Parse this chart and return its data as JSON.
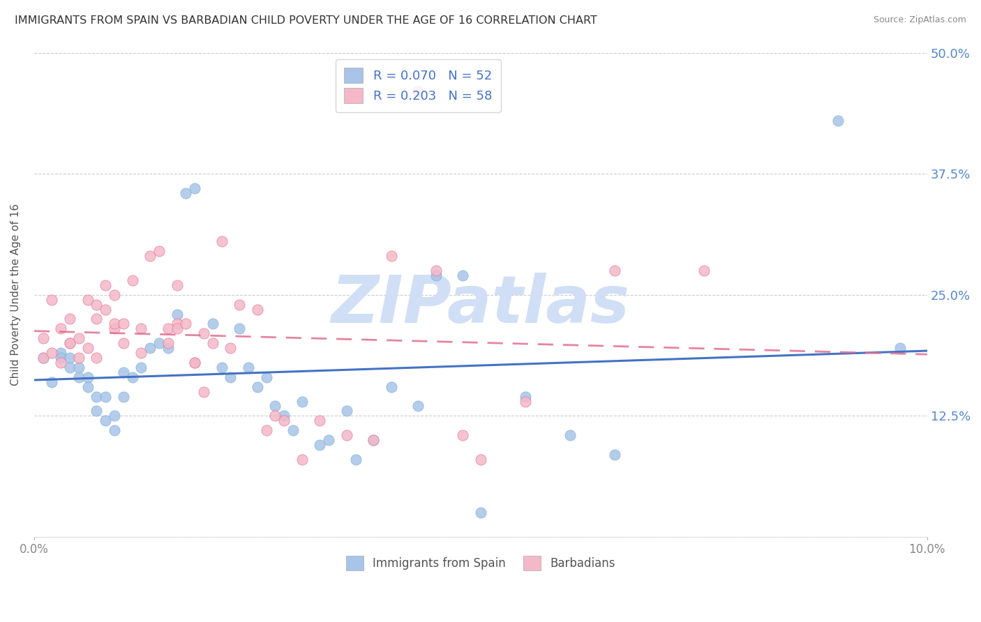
{
  "title": "IMMIGRANTS FROM SPAIN VS BARBADIAN CHILD POVERTY UNDER THE AGE OF 16 CORRELATION CHART",
  "source": "Source: ZipAtlas.com",
  "ylabel": "Child Poverty Under the Age of 16",
  "ytick_vals": [
    0.0,
    0.125,
    0.25,
    0.375,
    0.5
  ],
  "ytick_labels": [
    "",
    "12.5%",
    "25.0%",
    "37.5%",
    "50.0%"
  ],
  "xtick_vals": [
    0.0,
    0.1
  ],
  "xtick_labels": [
    "0.0%",
    "10.0%"
  ],
  "xlim": [
    0,
    0.1
  ],
  "ylim": [
    0,
    0.5
  ],
  "series1_color": "#a8c4e8",
  "series1_edge": "#7bafd4",
  "series2_color": "#f4b8c8",
  "series2_edge": "#e07090",
  "trendline1_color": "#4472c4",
  "trendline2_color": "#e07090",
  "watermark_text": "ZIPatlas",
  "watermark_color": "#d0dff5",
  "legend_patch1_color": "#a8c4e8",
  "legend_patch2_color": "#f4b8c8",
  "legend_text_color": "#4472c4",
  "legend_label1": "R = 0.070   N = 52",
  "legend_label2": "R = 0.203   N = 58",
  "bottom_label1": "Immigrants from Spain",
  "bottom_label2": "Barbadians",
  "ytick_color": "#5588cc",
  "title_color": "#333333",
  "source_color": "#888888",
  "ylabel_color": "#555555",
  "grid_color": "#cccccc",
  "series1_x": [
    0.001,
    0.002,
    0.003,
    0.003,
    0.004,
    0.004,
    0.005,
    0.005,
    0.006,
    0.006,
    0.007,
    0.007,
    0.008,
    0.008,
    0.009,
    0.009,
    0.01,
    0.01,
    0.011,
    0.012,
    0.013,
    0.014,
    0.015,
    0.016,
    0.017,
    0.018,
    0.02,
    0.021,
    0.022,
    0.023,
    0.024,
    0.025,
    0.026,
    0.027,
    0.028,
    0.029,
    0.03,
    0.032,
    0.033,
    0.035,
    0.036,
    0.038,
    0.04,
    0.043,
    0.045,
    0.048,
    0.05,
    0.055,
    0.06,
    0.065,
    0.09,
    0.097
  ],
  "series1_y": [
    0.185,
    0.16,
    0.19,
    0.185,
    0.185,
    0.175,
    0.175,
    0.165,
    0.165,
    0.155,
    0.145,
    0.13,
    0.145,
    0.12,
    0.11,
    0.125,
    0.145,
    0.17,
    0.165,
    0.175,
    0.195,
    0.2,
    0.195,
    0.23,
    0.355,
    0.36,
    0.22,
    0.175,
    0.165,
    0.215,
    0.175,
    0.155,
    0.165,
    0.135,
    0.125,
    0.11,
    0.14,
    0.095,
    0.1,
    0.13,
    0.08,
    0.1,
    0.155,
    0.135,
    0.27,
    0.27,
    0.025,
    0.145,
    0.105,
    0.085,
    0.43,
    0.195
  ],
  "series2_x": [
    0.001,
    0.001,
    0.002,
    0.002,
    0.003,
    0.003,
    0.004,
    0.004,
    0.004,
    0.005,
    0.005,
    0.006,
    0.006,
    0.007,
    0.007,
    0.007,
    0.008,
    0.008,
    0.009,
    0.009,
    0.009,
    0.01,
    0.01,
    0.011,
    0.012,
    0.012,
    0.013,
    0.014,
    0.015,
    0.015,
    0.016,
    0.016,
    0.016,
    0.017,
    0.018,
    0.018,
    0.019,
    0.019,
    0.02,
    0.021,
    0.022,
    0.023,
    0.025,
    0.026,
    0.027,
    0.028,
    0.03,
    0.032,
    0.035,
    0.038,
    0.04,
    0.043,
    0.045,
    0.048,
    0.05,
    0.055,
    0.065,
    0.075
  ],
  "series2_y": [
    0.185,
    0.205,
    0.19,
    0.245,
    0.18,
    0.215,
    0.2,
    0.225,
    0.2,
    0.185,
    0.205,
    0.195,
    0.245,
    0.185,
    0.225,
    0.24,
    0.235,
    0.26,
    0.25,
    0.215,
    0.22,
    0.2,
    0.22,
    0.265,
    0.19,
    0.215,
    0.29,
    0.295,
    0.2,
    0.215,
    0.22,
    0.26,
    0.215,
    0.22,
    0.18,
    0.18,
    0.15,
    0.21,
    0.2,
    0.305,
    0.195,
    0.24,
    0.235,
    0.11,
    0.125,
    0.12,
    0.08,
    0.12,
    0.105,
    0.1,
    0.29,
    0.46,
    0.275,
    0.105,
    0.08,
    0.14,
    0.275,
    0.275
  ]
}
